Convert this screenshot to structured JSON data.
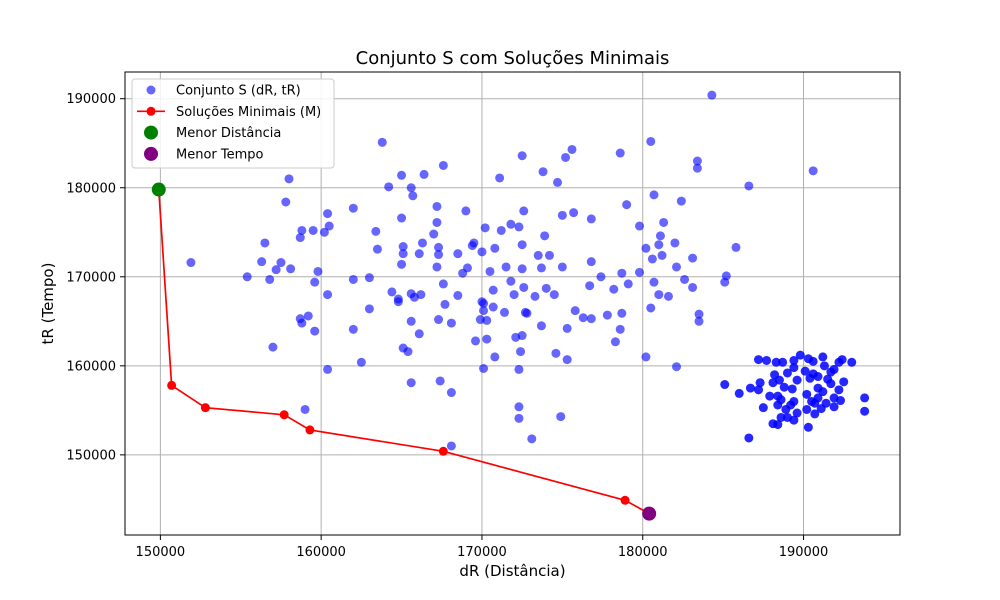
{
  "chart_data": {
    "type": "scatter",
    "title": "Conjunto S com Soluções Minimais",
    "xlabel": "dR (Distância)",
    "ylabel": "tR (Tempo)",
    "xlim": [
      147800,
      196000
    ],
    "ylim": [
      141000,
      193000
    ],
    "xticks": [
      150000,
      160000,
      170000,
      180000,
      190000
    ],
    "yticks": [
      150000,
      160000,
      170000,
      180000,
      190000
    ],
    "grid": true,
    "legend_position": "top-left",
    "legend": [
      {
        "label": "Conjunto S (dR, tR)",
        "marker": "circle",
        "color": "#0000ff"
      },
      {
        "label": "Soluções Minimais (M)",
        "marker": "line-circle",
        "color": "#ff0000"
      },
      {
        "label": "Menor Distância",
        "marker": "circle-large",
        "color": "#008000"
      },
      {
        "label": "Menor Tempo",
        "marker": "circle-large",
        "color": "#800080"
      }
    ],
    "series": [
      {
        "name": "Conjunto S (dR, tR)",
        "type": "scatter",
        "color": "#0000ff",
        "opacity": 0.6,
        "points": [
          [
            184300,
            190400
          ],
          [
            163800,
            185100
          ],
          [
            175600,
            184300
          ],
          [
            180500,
            185200
          ],
          [
            172500,
            183600
          ],
          [
            175200,
            183400
          ],
          [
            178600,
            183900
          ],
          [
            167600,
            182500
          ],
          [
            183400,
            183000
          ],
          [
            183400,
            182200
          ],
          [
            166400,
            181500
          ],
          [
            165000,
            181400
          ],
          [
            171100,
            181100
          ],
          [
            173800,
            181800
          ],
          [
            174700,
            180600
          ],
          [
            190600,
            181900
          ],
          [
            158000,
            181000
          ],
          [
            164200,
            180100
          ],
          [
            165600,
            180000
          ],
          [
            165700,
            179100
          ],
          [
            186600,
            180200
          ],
          [
            180700,
            179200
          ],
          [
            157800,
            178400
          ],
          [
            167200,
            177900
          ],
          [
            169000,
            177400
          ],
          [
            172600,
            177400
          ],
          [
            175700,
            177200
          ],
          [
            175000,
            176900
          ],
          [
            176800,
            176500
          ],
          [
            179000,
            178100
          ],
          [
            182400,
            178500
          ],
          [
            162000,
            177700
          ],
          [
            160400,
            177100
          ],
          [
            165000,
            176600
          ],
          [
            167200,
            176100
          ],
          [
            171800,
            175900
          ],
          [
            172300,
            175600
          ],
          [
            170200,
            175500
          ],
          [
            171200,
            175200
          ],
          [
            179800,
            175700
          ],
          [
            181300,
            176100
          ],
          [
            158800,
            175200
          ],
          [
            159500,
            175200
          ],
          [
            160200,
            175000
          ],
          [
            160500,
            175700
          ],
          [
            163400,
            175100
          ],
          [
            167000,
            174800
          ],
          [
            158700,
            174400
          ],
          [
            173900,
            174600
          ],
          [
            181100,
            174600
          ],
          [
            156500,
            173800
          ],
          [
            163500,
            173100
          ],
          [
            165100,
            173400
          ],
          [
            166300,
            173800
          ],
          [
            167300,
            173300
          ],
          [
            169400,
            173500
          ],
          [
            169500,
            173800
          ],
          [
            170800,
            173200
          ],
          [
            172500,
            173600
          ],
          [
            180200,
            173200
          ],
          [
            181000,
            173600
          ],
          [
            182000,
            173800
          ],
          [
            185800,
            173300
          ],
          [
            151900,
            171600
          ],
          [
            156300,
            171700
          ],
          [
            157500,
            171600
          ],
          [
            157200,
            170800
          ],
          [
            158100,
            170900
          ],
          [
            159800,
            170600
          ],
          [
            165100,
            172600
          ],
          [
            166100,
            172600
          ],
          [
            167300,
            172500
          ],
          [
            168500,
            172600
          ],
          [
            170000,
            172800
          ],
          [
            173500,
            172400
          ],
          [
            174200,
            172400
          ],
          [
            176800,
            171700
          ],
          [
            180600,
            172000
          ],
          [
            181200,
            172400
          ],
          [
            182100,
            171100
          ],
          [
            183100,
            172100
          ],
          [
            155400,
            170000
          ],
          [
            156800,
            169700
          ],
          [
            159600,
            169400
          ],
          [
            162000,
            169700
          ],
          [
            163000,
            169900
          ],
          [
            165000,
            171400
          ],
          [
            167200,
            171100
          ],
          [
            169100,
            171000
          ],
          [
            168800,
            170400
          ],
          [
            170500,
            170600
          ],
          [
            171500,
            171100
          ],
          [
            172500,
            170900
          ],
          [
            173700,
            171000
          ],
          [
            175000,
            171100
          ],
          [
            177400,
            170000
          ],
          [
            178700,
            170400
          ],
          [
            179800,
            170500
          ],
          [
            180700,
            169400
          ],
          [
            182600,
            169700
          ],
          [
            185200,
            170100
          ],
          [
            185100,
            169400
          ],
          [
            160400,
            168000
          ],
          [
            164400,
            168300
          ],
          [
            164800,
            167500
          ],
          [
            165600,
            168100
          ],
          [
            165800,
            167700
          ],
          [
            166200,
            168000
          ],
          [
            167600,
            169200
          ],
          [
            168500,
            167900
          ],
          [
            170000,
            167200
          ],
          [
            170700,
            168500
          ],
          [
            171800,
            169500
          ],
          [
            172000,
            168000
          ],
          [
            172600,
            168800
          ],
          [
            174000,
            168700
          ],
          [
            174500,
            168000
          ],
          [
            176700,
            169000
          ],
          [
            178200,
            168600
          ],
          [
            179100,
            169200
          ],
          [
            181000,
            168000
          ],
          [
            181600,
            167800
          ],
          [
            183100,
            168800
          ],
          [
            163000,
            166400
          ],
          [
            164800,
            167200
          ],
          [
            167700,
            166900
          ],
          [
            170100,
            167000
          ],
          [
            170100,
            166200
          ],
          [
            170700,
            166600
          ],
          [
            171400,
            166000
          ],
          [
            172700,
            166000
          ],
          [
            173300,
            167800
          ],
          [
            175800,
            166200
          ],
          [
            177800,
            165700
          ],
          [
            180500,
            166500
          ],
          [
            183500,
            165800
          ],
          [
            183500,
            165000
          ],
          [
            159200,
            165600
          ],
          [
            158700,
            165300
          ],
          [
            158800,
            164800
          ],
          [
            165600,
            165000
          ],
          [
            167300,
            165200
          ],
          [
            168100,
            164800
          ],
          [
            169900,
            165200
          ],
          [
            170300,
            165100
          ],
          [
            172800,
            165900
          ],
          [
            176300,
            165400
          ],
          [
            176800,
            165300
          ],
          [
            178700,
            165900
          ],
          [
            159600,
            163900
          ],
          [
            162000,
            164100
          ],
          [
            166100,
            163600
          ],
          [
            169600,
            162800
          ],
          [
            170300,
            163000
          ],
          [
            172100,
            163200
          ],
          [
            172500,
            163400
          ],
          [
            173700,
            164500
          ],
          [
            175300,
            164200
          ],
          [
            178600,
            164100
          ],
          [
            157000,
            162100
          ],
          [
            165100,
            162000
          ],
          [
            165400,
            161600
          ],
          [
            170800,
            161000
          ],
          [
            172400,
            161600
          ],
          [
            174600,
            161400
          ],
          [
            175300,
            160700
          ],
          [
            178300,
            162700
          ],
          [
            180200,
            161000
          ],
          [
            162500,
            160400
          ],
          [
            160400,
            159600
          ],
          [
            170100,
            159700
          ],
          [
            172300,
            159600
          ],
          [
            182100,
            159900
          ],
          [
            165600,
            158100
          ],
          [
            167400,
            158300
          ],
          [
            168100,
            157000
          ],
          [
            159000,
            155100
          ],
          [
            172300,
            155400
          ],
          [
            172300,
            154100
          ],
          [
            174900,
            154300
          ],
          [
            168100,
            151000
          ],
          [
            173100,
            151800
          ]
        ]
      },
      {
        "name": "cluster",
        "type": "scatter",
        "color": "#0000ff",
        "opacity": 0.85,
        "points": [
          [
            189800,
            161200
          ],
          [
            191200,
            161000
          ],
          [
            190300,
            160800
          ],
          [
            190600,
            160500
          ],
          [
            187200,
            160700
          ],
          [
            187700,
            160600
          ],
          [
            188300,
            160400
          ],
          [
            188700,
            160400
          ],
          [
            189400,
            160600
          ],
          [
            192400,
            160700
          ],
          [
            192200,
            160400
          ],
          [
            193000,
            160400
          ],
          [
            191300,
            160000
          ],
          [
            191900,
            159600
          ],
          [
            189400,
            159800
          ],
          [
            190100,
            159400
          ],
          [
            190600,
            159100
          ],
          [
            191700,
            159300
          ],
          [
            189000,
            159200
          ],
          [
            188200,
            159000
          ],
          [
            190900,
            158800
          ],
          [
            190400,
            158600
          ],
          [
            189600,
            158400
          ],
          [
            188500,
            158400
          ],
          [
            188100,
            158100
          ],
          [
            191500,
            158500
          ],
          [
            191700,
            158000
          ],
          [
            192500,
            158200
          ],
          [
            187300,
            158100
          ],
          [
            185100,
            157900
          ],
          [
            186700,
            157500
          ],
          [
            187200,
            157300
          ],
          [
            188800,
            157600
          ],
          [
            189300,
            157400
          ],
          [
            190900,
            157500
          ],
          [
            191200,
            157100
          ],
          [
            192200,
            157300
          ],
          [
            186000,
            156900
          ],
          [
            187900,
            156600
          ],
          [
            188400,
            156600
          ],
          [
            190200,
            156800
          ],
          [
            191900,
            156400
          ],
          [
            192300,
            156100
          ],
          [
            193800,
            156400
          ],
          [
            188600,
            156200
          ],
          [
            189400,
            156000
          ],
          [
            190500,
            156000
          ],
          [
            190900,
            156400
          ],
          [
            190700,
            155800
          ],
          [
            191400,
            155800
          ],
          [
            189200,
            155600
          ],
          [
            188400,
            155600
          ],
          [
            187500,
            155300
          ],
          [
            188900,
            155100
          ],
          [
            190200,
            155100
          ],
          [
            191100,
            155200
          ],
          [
            191900,
            155400
          ],
          [
            193800,
            154900
          ],
          [
            190700,
            154600
          ],
          [
            189600,
            154700
          ],
          [
            188600,
            154200
          ],
          [
            189000,
            154200
          ],
          [
            188100,
            153500
          ],
          [
            188400,
            153400
          ],
          [
            189400,
            153900
          ],
          [
            190300,
            153100
          ],
          [
            186600,
            151900
          ]
        ]
      },
      {
        "name": "Soluções Minimais (M)",
        "type": "line",
        "color": "#ff0000",
        "points": [
          [
            149900,
            179800
          ],
          [
            150700,
            157800
          ],
          [
            152800,
            155300
          ],
          [
            157700,
            154500
          ],
          [
            159300,
            152800
          ],
          [
            167600,
            150400
          ],
          [
            178900,
            144900
          ],
          [
            180400,
            143400
          ]
        ]
      },
      {
        "name": "Menor Distância",
        "type": "scatter",
        "color": "#008000",
        "points": [
          [
            149900,
            179800
          ]
        ]
      },
      {
        "name": "Menor Tempo",
        "type": "scatter",
        "color": "#800080",
        "points": [
          [
            180400,
            143400
          ]
        ]
      }
    ]
  }
}
